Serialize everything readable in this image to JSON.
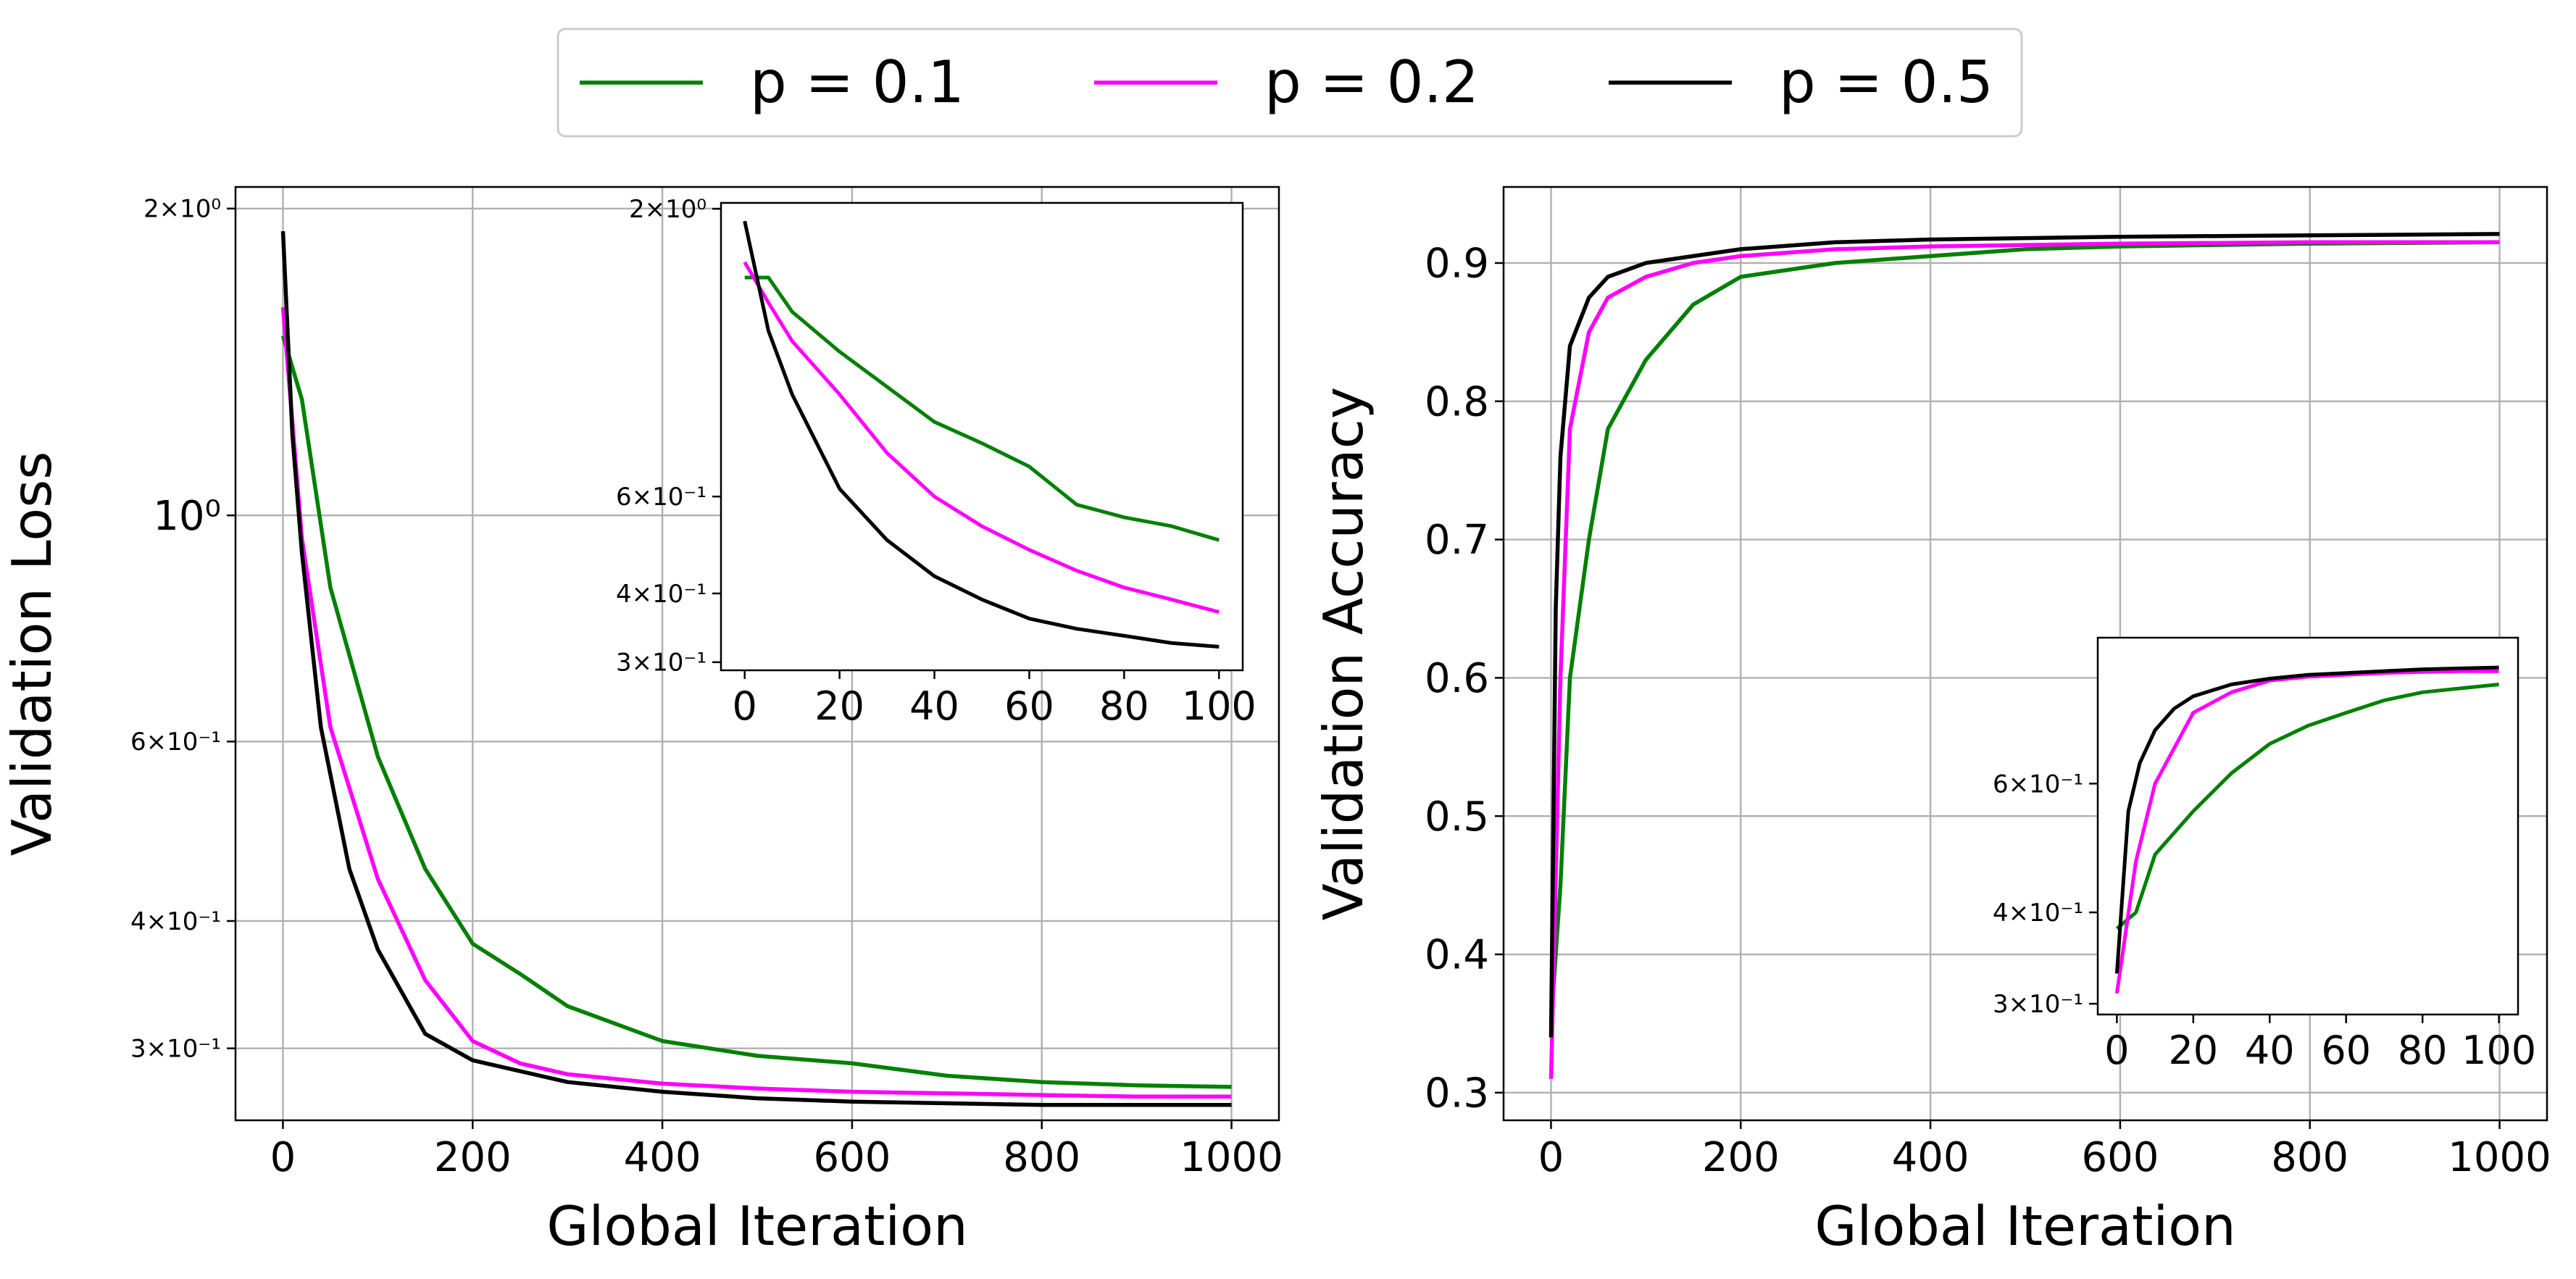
{
  "legend": {
    "placement": "top-center",
    "entries": [
      {
        "label": "p = 0.1",
        "color": "#008000"
      },
      {
        "label": "p = 0.2",
        "color": "#ff00ff"
      },
      {
        "label": "p = 0.5",
        "color": "#000000"
      }
    ]
  },
  "chart_data": [
    {
      "type": "line",
      "xlabel": "Global Iteration",
      "ylabel": "Validation Loss",
      "yscale": "log",
      "xlim": [
        -50,
        1050
      ],
      "ylim": [
        0.255,
        2.1
      ],
      "grid": true,
      "xticks": [
        0,
        200,
        400,
        600,
        800,
        1000
      ],
      "xtick_labels": [
        "0",
        "200",
        "400",
        "600",
        "800",
        "1000"
      ],
      "yticks": [
        2,
        1,
        0.6,
        0.4,
        0.3
      ],
      "ytick_labels": [
        "2×10⁰",
        "10⁰",
        "6×10⁻¹",
        "4×10⁻¹",
        "3×10⁻¹"
      ],
      "series": [
        {
          "name": "p = 0.1",
          "color": "#008000",
          "x": [
            0,
            20,
            50,
            100,
            150,
            200,
            250,
            300,
            400,
            500,
            600,
            700,
            800,
            900,
            1000
          ],
          "values": [
            1.5,
            1.3,
            0.85,
            0.58,
            0.45,
            0.38,
            0.355,
            0.33,
            0.305,
            0.295,
            0.29,
            0.282,
            0.278,
            0.276,
            0.275
          ]
        },
        {
          "name": "p = 0.2",
          "color": "#ff00ff",
          "x": [
            0,
            20,
            50,
            100,
            150,
            200,
            250,
            300,
            400,
            500,
            600,
            700,
            800,
            900,
            1000
          ],
          "values": [
            1.6,
            0.95,
            0.62,
            0.44,
            0.35,
            0.305,
            0.29,
            0.283,
            0.277,
            0.274,
            0.272,
            0.271,
            0.27,
            0.269,
            0.269
          ]
        },
        {
          "name": "p = 0.5",
          "color": "#000000",
          "x": [
            0,
            10,
            20,
            40,
            70,
            100,
            150,
            200,
            300,
            400,
            500,
            600,
            700,
            800,
            900,
            1000
          ],
          "values": [
            1.9,
            1.2,
            0.92,
            0.62,
            0.45,
            0.375,
            0.31,
            0.292,
            0.278,
            0.272,
            0.268,
            0.266,
            0.265,
            0.264,
            0.264,
            0.264
          ]
        }
      ],
      "inset": {
        "type": "line",
        "yscale": "log",
        "xlim": [
          -5,
          105
        ],
        "ylim": [
          0.29,
          2.05
        ],
        "xticks": [
          0,
          20,
          40,
          60,
          80,
          100
        ],
        "xtick_labels": [
          "0",
          "20",
          "40",
          "60",
          "80",
          "100"
        ],
        "yticks": [
          2,
          0.6,
          0.4,
          0.3
        ],
        "ytick_labels": [
          "2×10⁰",
          "6×10⁻¹",
          "4×10⁻¹",
          "3×10⁻¹"
        ],
        "series": [
          {
            "name": "p = 0.1",
            "color": "#008000",
            "x": [
              0,
              5,
              10,
              20,
              30,
              40,
              50,
              60,
              70,
              80,
              90,
              100
            ],
            "values": [
              1.5,
              1.5,
              1.3,
              1.1,
              0.95,
              0.82,
              0.75,
              0.68,
              0.58,
              0.55,
              0.53,
              0.5
            ]
          },
          {
            "name": "p = 0.2",
            "color": "#ff00ff",
            "x": [
              0,
              5,
              10,
              20,
              30,
              40,
              50,
              60,
              70,
              80,
              90,
              100
            ],
            "values": [
              1.6,
              1.35,
              1.15,
              0.92,
              0.72,
              0.6,
              0.53,
              0.48,
              0.44,
              0.41,
              0.39,
              0.37
            ]
          },
          {
            "name": "p = 0.5",
            "color": "#000000",
            "x": [
              0,
              5,
              10,
              20,
              30,
              40,
              50,
              60,
              70,
              80,
              90,
              100
            ],
            "values": [
              1.9,
              1.2,
              0.92,
              0.62,
              0.5,
              0.43,
              0.39,
              0.36,
              0.345,
              0.335,
              0.325,
              0.32
            ]
          }
        ]
      }
    },
    {
      "type": "line",
      "xlabel": "Global Iteration",
      "ylabel": "Validation Accuracy",
      "yscale": "linear",
      "xlim": [
        -50,
        1050
      ],
      "ylim": [
        0.28,
        0.955
      ],
      "grid": true,
      "xticks": [
        0,
        200,
        400,
        600,
        800,
        1000
      ],
      "xtick_labels": [
        "0",
        "200",
        "400",
        "600",
        "800",
        "1000"
      ],
      "yticks": [
        0.3,
        0.4,
        0.5,
        0.6,
        0.7,
        0.8,
        0.9
      ],
      "ytick_labels": [
        "0.3",
        "0.4",
        "0.5",
        "0.6",
        "0.7",
        "0.8",
        "0.9"
      ],
      "series": [
        {
          "name": "p = 0.1",
          "color": "#008000",
          "x": [
            0,
            10,
            20,
            40,
            60,
            100,
            150,
            200,
            300,
            400,
            500,
            600,
            800,
            1000
          ],
          "values": [
            0.35,
            0.45,
            0.6,
            0.7,
            0.78,
            0.83,
            0.87,
            0.89,
            0.9,
            0.905,
            0.91,
            0.912,
            0.914,
            0.915
          ]
        },
        {
          "name": "p = 0.2",
          "color": "#ff00ff",
          "x": [
            0,
            10,
            20,
            40,
            60,
            100,
            150,
            200,
            300,
            400,
            500,
            600,
            800,
            1000
          ],
          "values": [
            0.31,
            0.6,
            0.78,
            0.85,
            0.875,
            0.89,
            0.9,
            0.905,
            0.91,
            0.912,
            0.913,
            0.914,
            0.915,
            0.915
          ]
        },
        {
          "name": "p = 0.5",
          "color": "#000000",
          "x": [
            0,
            5,
            10,
            20,
            40,
            60,
            100,
            150,
            200,
            300,
            400,
            500,
            600,
            800,
            1000
          ],
          "values": [
            0.34,
            0.65,
            0.76,
            0.84,
            0.875,
            0.89,
            0.9,
            0.905,
            0.91,
            0.915,
            0.917,
            0.918,
            0.919,
            0.92,
            0.921
          ]
        }
      ],
      "inset": {
        "type": "line",
        "yscale": "log",
        "xlim": [
          -5,
          105
        ],
        "ylim": [
          0.29,
          0.95
        ],
        "xticks": [
          0,
          20,
          40,
          60,
          80,
          100
        ],
        "xtick_labels": [
          "0",
          "20",
          "40",
          "60",
          "80",
          "100"
        ],
        "yticks": [
          0.6,
          0.4,
          0.3
        ],
        "ytick_labels": [
          "6×10⁻¹",
          "4×10⁻¹",
          "3×10⁻¹"
        ],
        "series": [
          {
            "name": "p = 0.1",
            "color": "#008000",
            "x": [
              0,
              5,
              10,
              20,
              30,
              40,
              50,
              60,
              70,
              80,
              90,
              100
            ],
            "values": [
              0.38,
              0.4,
              0.48,
              0.55,
              0.62,
              0.68,
              0.72,
              0.75,
              0.78,
              0.8,
              0.81,
              0.82
            ]
          },
          {
            "name": "p = 0.2",
            "color": "#ff00ff",
            "x": [
              0,
              5,
              10,
              20,
              30,
              40,
              50,
              60,
              70,
              80,
              90,
              100
            ],
            "values": [
              0.31,
              0.47,
              0.6,
              0.75,
              0.8,
              0.83,
              0.84,
              0.845,
              0.85,
              0.853,
              0.855,
              0.855
            ]
          },
          {
            "name": "p = 0.5",
            "color": "#000000",
            "x": [
              0,
              3,
              6,
              10,
              15,
              20,
              30,
              40,
              50,
              60,
              80,
              100
            ],
            "values": [
              0.33,
              0.55,
              0.64,
              0.71,
              0.76,
              0.79,
              0.82,
              0.835,
              0.845,
              0.85,
              0.86,
              0.865
            ]
          }
        ]
      }
    }
  ]
}
